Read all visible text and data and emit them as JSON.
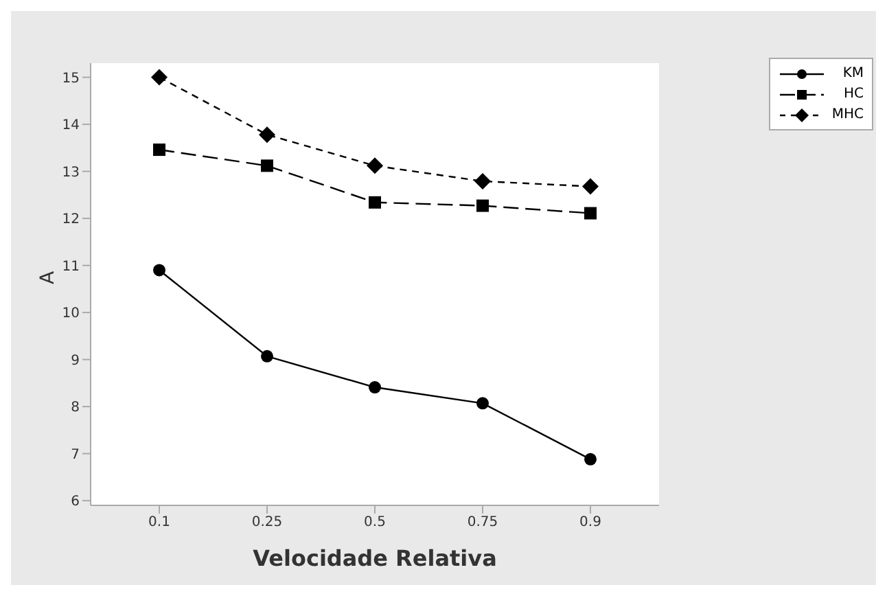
{
  "chart_data": {
    "type": "line",
    "xlabel": "Velocidade Relativa",
    "ylabel": "A",
    "categories": [
      "0.1",
      "0.25",
      "0.5",
      "0.75",
      "0.9"
    ],
    "series": [
      {
        "name": "KM",
        "color": "#000000",
        "marker": "circle",
        "line_style": "solid",
        "values": [
          10.9,
          9.07,
          8.41,
          8.07,
          6.88
        ]
      },
      {
        "name": "HC",
        "color": "#000000",
        "marker": "square",
        "line_style": "dashed",
        "values": [
          13.46,
          13.12,
          12.34,
          12.27,
          12.11
        ]
      },
      {
        "name": "MHC",
        "color": "#000000",
        "marker": "diamond",
        "line_style": "dotted",
        "values": [
          15.0,
          13.78,
          13.12,
          12.79,
          12.68
        ]
      }
    ],
    "ylim": [
      5.9,
      15.3
    ],
    "yticks": [
      6,
      7,
      8,
      9,
      10,
      11,
      12,
      13,
      14,
      15
    ],
    "grid": false,
    "legend": "top right"
  }
}
